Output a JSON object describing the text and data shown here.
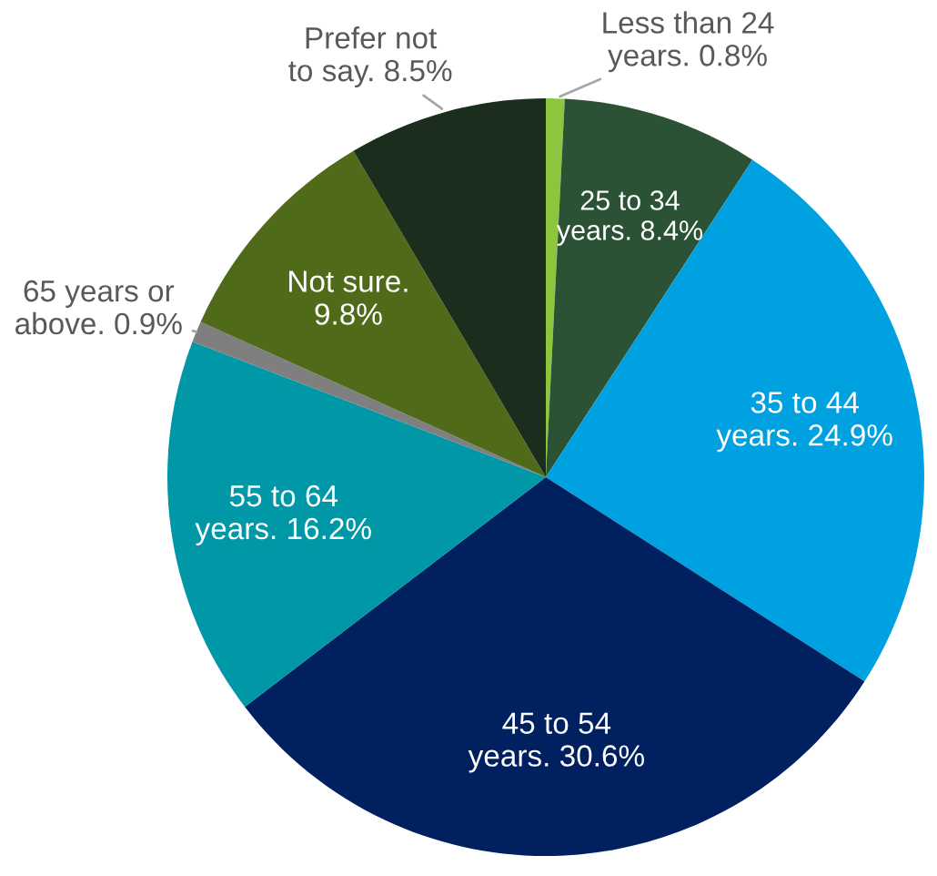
{
  "chart_data": {
    "type": "pie",
    "categories": [
      "Less than 24 years.",
      "25 to 34 years.",
      "35 to 44 years.",
      "45 to 54 years.",
      "55 to 64 years.",
      "65 years or above.",
      "Not sure.",
      "Prefer not to say."
    ],
    "values": [
      0.8,
      8.4,
      24.9,
      30.6,
      16.2,
      0.9,
      9.8,
      8.5
    ],
    "value_labels": [
      "0.8%",
      "8.4%",
      "24.9%",
      "30.6%",
      "16.2%",
      "0.9%",
      "9.8%",
      "8.5%"
    ],
    "colors": [
      "#8cc63f",
      "#2b5234",
      "#00a1e0",
      "#012060",
      "#0097a7",
      "#7f7f7f",
      "#4f6b1a",
      "#1b2e1d"
    ],
    "legend": false
  }
}
